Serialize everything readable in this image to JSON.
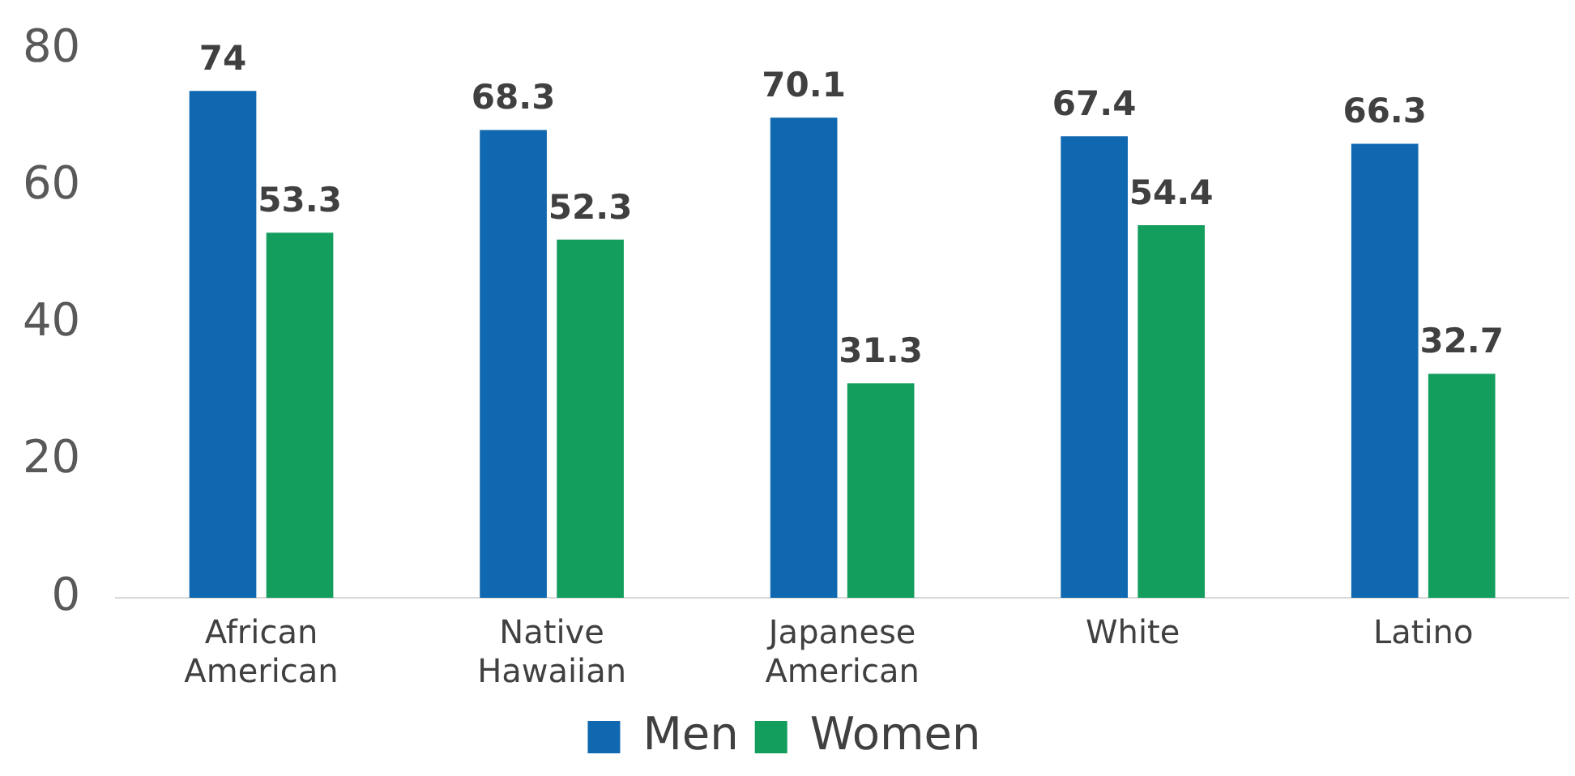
{
  "chart_data": {
    "type": "bar",
    "categories": [
      "African American",
      "Native Hawaiian",
      "Japanese American",
      "White",
      "Latino"
    ],
    "series": [
      {
        "name": "Men",
        "color": "#1068b0",
        "values": [
          74,
          68.3,
          70.1,
          67.4,
          66.3
        ]
      },
      {
        "name": "Women",
        "color": "#149e5e",
        "values": [
          53.3,
          52.3,
          31.3,
          54.4,
          32.7
        ]
      }
    ],
    "ylim": [
      0,
      80
    ],
    "yticks": [
      0,
      20,
      40,
      60,
      80
    ],
    "grid": false,
    "legend": "bottom",
    "data_labels": true
  }
}
